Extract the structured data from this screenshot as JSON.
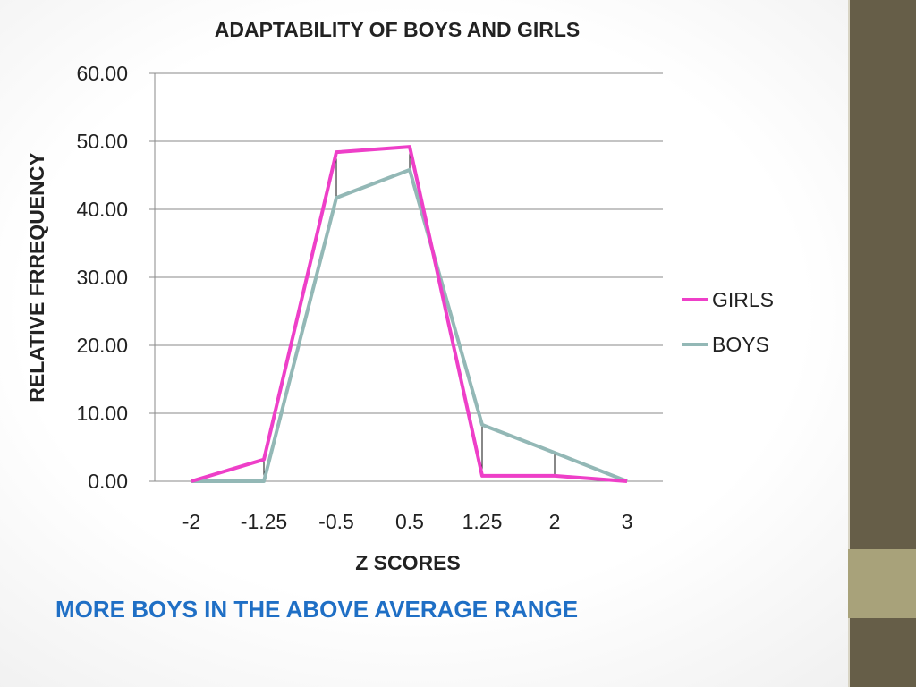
{
  "slide": {
    "caption": "MORE BOYS IN THE ABOVE AVERAGE RANGE",
    "caption_color": "#1f6fc5",
    "band_color": "#665e48",
    "band_accent_color": "#a8a27a"
  },
  "chart_data": {
    "type": "line",
    "title": "ADAPTABILITY OF BOYS AND GIRLS",
    "xlabel": "Z SCORES",
    "ylabel": "RELATIVE FRREQUENCY",
    "categories": [
      "-2",
      "-1.25",
      "-0.5",
      "0.5",
      "1.25",
      "2",
      "3"
    ],
    "ylim": [
      0,
      60
    ],
    "yticks": [
      "0.00",
      "10.00",
      "20.00",
      "30.00",
      "40.00",
      "50.00",
      "60.00"
    ],
    "grid": true,
    "legend_position": "right",
    "high_low_lines": true,
    "series": [
      {
        "name": "GIRLS",
        "color": "#ee3fc8",
        "values": [
          0.0,
          3.2,
          48.4,
          49.2,
          0.8,
          0.8,
          0.0
        ]
      },
      {
        "name": "BOYS",
        "color": "#93b8b6",
        "values": [
          0.0,
          0.0,
          41.7,
          45.8,
          8.3,
          4.2,
          0.0
        ]
      }
    ]
  }
}
